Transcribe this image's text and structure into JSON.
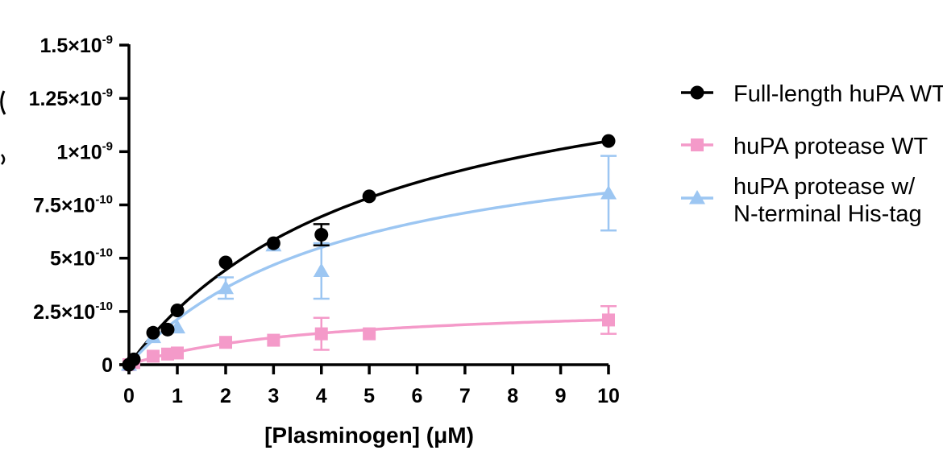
{
  "chart_data": {
    "type": "scatter",
    "title": "",
    "xlabel": "[Plasminogen] (μM)",
    "ylabel": "",
    "xlim": [
      0,
      10
    ],
    "ylim": [
      0,
      1.5e-09
    ],
    "grid": false,
    "legend_position": "right",
    "x_scale": "linear",
    "x_break_between": [
      1,
      2
    ],
    "x_ticks": [
      0,
      1,
      2,
      3,
      4,
      5,
      6,
      7,
      8,
      9,
      10
    ],
    "x_tick_labels": [
      "0",
      "1",
      "2",
      "3",
      "4",
      "5",
      "6",
      "7",
      "8",
      "9",
      "10"
    ],
    "y_ticks": [
      {
        "value": 0,
        "mantissa": "0",
        "exponent": ""
      },
      {
        "value": 2.5e-10,
        "mantissa": "2.5×10",
        "exponent": "-10"
      },
      {
        "value": 5e-10,
        "mantissa": "5×10",
        "exponent": "-10"
      },
      {
        "value": 7.5e-10,
        "mantissa": "7.5×10",
        "exponent": "-10"
      },
      {
        "value": 1e-09,
        "mantissa": "1×10",
        "exponent": "-9"
      },
      {
        "value": 1.25e-09,
        "mantissa": "1.25×10",
        "exponent": "-9"
      },
      {
        "value": 1.5e-09,
        "mantissa": "1.5×10",
        "exponent": "-9"
      }
    ],
    "series": [
      {
        "name": "Full-length huPA WT",
        "color": "#000000",
        "marker": "circle",
        "x": [
          0,
          0.1,
          0.5,
          0.8,
          1,
          2,
          3,
          4,
          5,
          10
        ],
        "y": [
          0,
          2.5e-11,
          1.5e-10,
          1.65e-10,
          2.55e-10,
          4.8e-10,
          5.7e-10,
          6.1e-10,
          7.9e-10,
          1.05e-09
        ],
        "error": [
          0,
          0,
          0,
          0,
          0,
          0,
          0,
          5e-11,
          0,
          0
        ],
        "fit": {
          "model": "michaelis-menten",
          "vmax": 1.59e-09,
          "km": 5.15
        }
      },
      {
        "name": "huPA protease WT",
        "color": "#F49AC9",
        "marker": "square",
        "x": [
          0,
          0.1,
          0.5,
          0.8,
          1,
          2,
          3,
          4,
          5,
          10
        ],
        "y": [
          0,
          1e-11,
          4e-11,
          5e-11,
          5.5e-11,
          1.05e-10,
          1.15e-10,
          1.45e-10,
          1.45e-10,
          2.1e-10
        ],
        "error": [
          0,
          0,
          0,
          0,
          0,
          0,
          0,
          7.5e-11,
          0,
          6.5e-11
        ],
        "fit": {
          "model": "michaelis-menten",
          "vmax": 2.93e-10,
          "km": 3.92
        }
      },
      {
        "name": "huPA protease w/\nN-terminal His-tag",
        "color": "#9CC6F2",
        "marker": "triangle",
        "x": [
          0,
          0.5,
          1,
          2,
          3,
          4,
          10
        ],
        "y": [
          0,
          1.3e-10,
          1.75e-10,
          3.6e-10,
          5.6e-10,
          4.4e-10,
          8.05e-10
        ],
        "error": [
          0,
          0,
          0,
          5e-11,
          0,
          1.3e-10,
          1.75e-10
        ],
        "fit": {
          "model": "michaelis-menten",
          "vmax": 1.17e-09,
          "km": 4.5
        }
      }
    ]
  }
}
